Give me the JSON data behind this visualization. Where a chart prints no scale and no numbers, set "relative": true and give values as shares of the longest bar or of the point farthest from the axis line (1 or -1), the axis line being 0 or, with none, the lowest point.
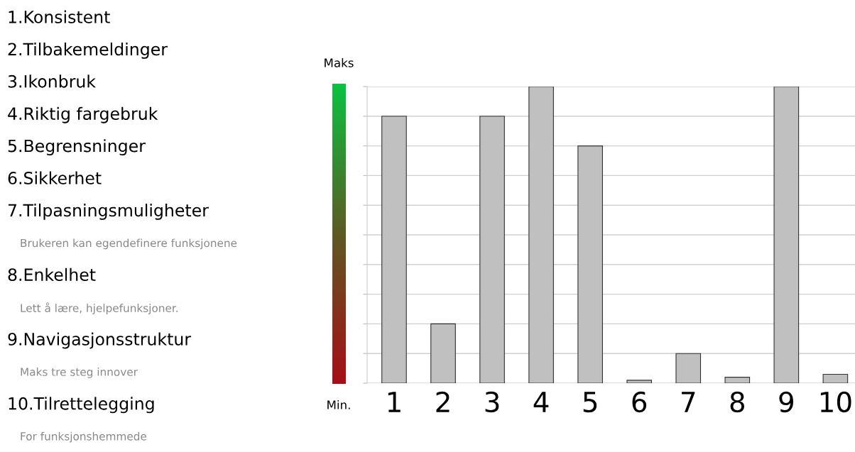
{
  "chart_data": {
    "type": "bar",
    "relative": true,
    "categories": [
      "1",
      "2",
      "3",
      "4",
      "5",
      "6",
      "7",
      "8",
      "9",
      "10"
    ],
    "values": [
      0.9,
      0.2,
      0.9,
      1,
      0.8,
      0.01,
      0.1,
      0.02,
      1,
      0.03
    ],
    "color": "#c0c0c0",
    "grid": "y",
    "annotations": [
      "Maks",
      "Min.",
      "1.Konsistent",
      "2.Tilbakemeldinger",
      "3.Ikonbruk",
      "4.Riktig fargebruk",
      "5.Begrensninger",
      "6.Sikkerhet",
      "7.Tilpasningsmuligheter",
      "Brukeren kan egendefinere funksjonene",
      "8.Enkelhet",
      "Lett å lære, hjelpefunksjoner.",
      "9.Navigasjonsstruktur",
      "Maks tre steg innover",
      "10.Tilrettelegging",
      "For funksjonshemmede"
    ]
  }
}
